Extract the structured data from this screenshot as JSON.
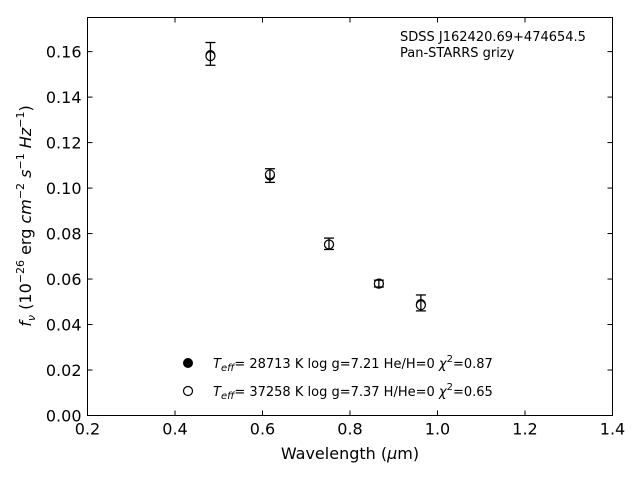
{
  "chart_data": {
    "type": "scatter",
    "xlabel": "Wavelength (µm)",
    "ylabel": "f_ν (10^-26 erg cm^-2 s^-1 Hz^-1)",
    "xlim": [
      0.2,
      1.4
    ],
    "ylim": [
      0.0,
      0.175
    ],
    "x_ticks": [
      "0.2",
      "0.4",
      "0.6",
      "0.8",
      "1.0",
      "1.2",
      "1.4"
    ],
    "y_ticks": [
      "0.00",
      "0.02",
      "0.04",
      "0.06",
      "0.08",
      "0.10",
      "0.12",
      "0.14",
      "0.16"
    ],
    "annotation": [
      "SDSS J162420.69+474654.5",
      "Pan-STARRS grizy"
    ],
    "grid": false,
    "legend_position": "lower-left",
    "series": [
      {
        "name": "T_eff= 28713 K  log g=7.21  He/H=0  χ²=0.87",
        "marker": "filled-circle",
        "color": "#000000",
        "x": [
          0.481,
          0.617,
          0.752,
          0.866,
          0.962
        ],
        "y": [
          0.1585,
          0.1055,
          0.0752,
          0.058,
          0.049
        ]
      },
      {
        "name": "T_eff= 37258 K  log g=7.37  H/He=0  χ²=0.65",
        "marker": "open-circle",
        "color": "#000000",
        "x": [
          0.481,
          0.617,
          0.752,
          0.866,
          0.962
        ],
        "y": [
          0.158,
          0.106,
          0.0752,
          0.058,
          0.0485
        ]
      }
    ],
    "observed": {
      "x": [
        0.481,
        0.617,
        0.752,
        0.866,
        0.962
      ],
      "y": [
        0.159,
        0.1055,
        0.0755,
        0.058,
        0.0495
      ],
      "yerr": [
        0.005,
        0.003,
        0.0025,
        0.0015,
        0.0035
      ]
    }
  }
}
